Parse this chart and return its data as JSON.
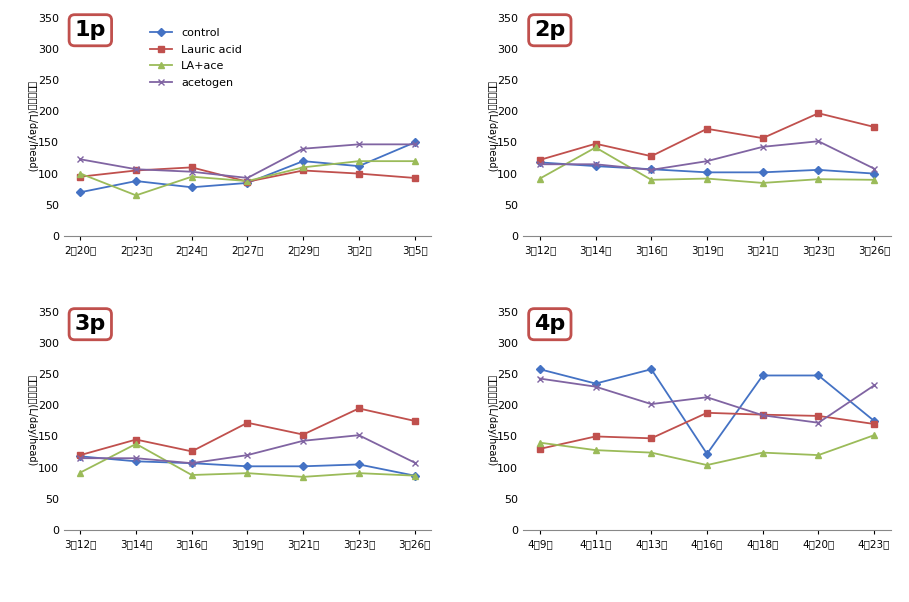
{
  "panel1": {
    "label": "1p",
    "x_labels": [
      "2월20일",
      "2월23일",
      "2월24일",
      "2월27일",
      "2월29일",
      "3월2일",
      "3월5일"
    ],
    "control": [
      70,
      88,
      78,
      85,
      120,
      112,
      150
    ],
    "lauric_acid": [
      95,
      105,
      110,
      87,
      105,
      100,
      93
    ],
    "la_ace": [
      100,
      65,
      95,
      88,
      110,
      120,
      120
    ],
    "acetogen": [
      123,
      107,
      103,
      93,
      140,
      147,
      147
    ]
  },
  "panel2": {
    "label": "2p",
    "x_labels": [
      "3월12일",
      "3월14일",
      "3월16일",
      "3월19일",
      "3월21일",
      "3월23일",
      "3월26일"
    ],
    "control": [
      118,
      112,
      107,
      102,
      102,
      106,
      100
    ],
    "lauric_acid": [
      122,
      148,
      128,
      172,
      157,
      197,
      175
    ],
    "la_ace": [
      92,
      142,
      90,
      92,
      85,
      91,
      90
    ],
    "acetogen": [
      115,
      115,
      106,
      120,
      143,
      152,
      108
    ]
  },
  "panel3": {
    "label": "3p",
    "x_labels": [
      "3월12일",
      "3월14일",
      "3월16일",
      "3월19일",
      "3월21일",
      "3월23일",
      "3월26일"
    ],
    "control": [
      118,
      110,
      107,
      102,
      102,
      105,
      87
    ],
    "lauric_acid": [
      120,
      145,
      126,
      172,
      153,
      195,
      175
    ],
    "la_ace": [
      92,
      138,
      88,
      91,
      85,
      91,
      87
    ],
    "acetogen": [
      115,
      115,
      107,
      120,
      143,
      152,
      108
    ]
  },
  "panel4": {
    "label": "4p",
    "x_labels": [
      "4월9일",
      "4월11일",
      "4월13일",
      "4월16일",
      "4월18일",
      "4월20일",
      "4월23일"
    ],
    "control": [
      258,
      235,
      258,
      122,
      248,
      248,
      175
    ],
    "lauric_acid": [
      130,
      150,
      147,
      188,
      185,
      183,
      170
    ],
    "la_ace": [
      140,
      128,
      124,
      104,
      124,
      120,
      152
    ],
    "acetogen": [
      243,
      230,
      202,
      213,
      184,
      172,
      232
    ]
  },
  "colors": {
    "control": "#4472C4",
    "lauric_acid": "#C0504D",
    "la_ace": "#9BBB59",
    "acetogen": "#8064A2"
  },
  "ylim": [
    0,
    350
  ],
  "yticks": [
    0,
    50,
    100,
    150,
    200,
    250,
    300,
    350
  ],
  "ylabel": "메탄생산량(L/day/head)",
  "ylabel_korean_chars": [
    "메",
    "탄",
    "생",
    "산",
    "량"
  ],
  "ylabel_suffix": "(L/day/head)",
  "legend_labels": [
    "control",
    "Lauric acid",
    "LA+ace",
    "acetogen"
  ],
  "box_color": "#C0504D",
  "bg_color": "#ffffff"
}
